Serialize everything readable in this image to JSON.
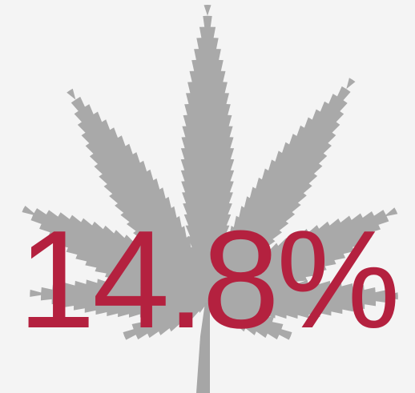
{
  "infographic": {
    "icon": "cannabis-leaf-icon",
    "value": "14.8%",
    "colors": {
      "background": "#f4f4f4",
      "leaf": "#a6a6a6",
      "value": "#b4213f"
    }
  }
}
